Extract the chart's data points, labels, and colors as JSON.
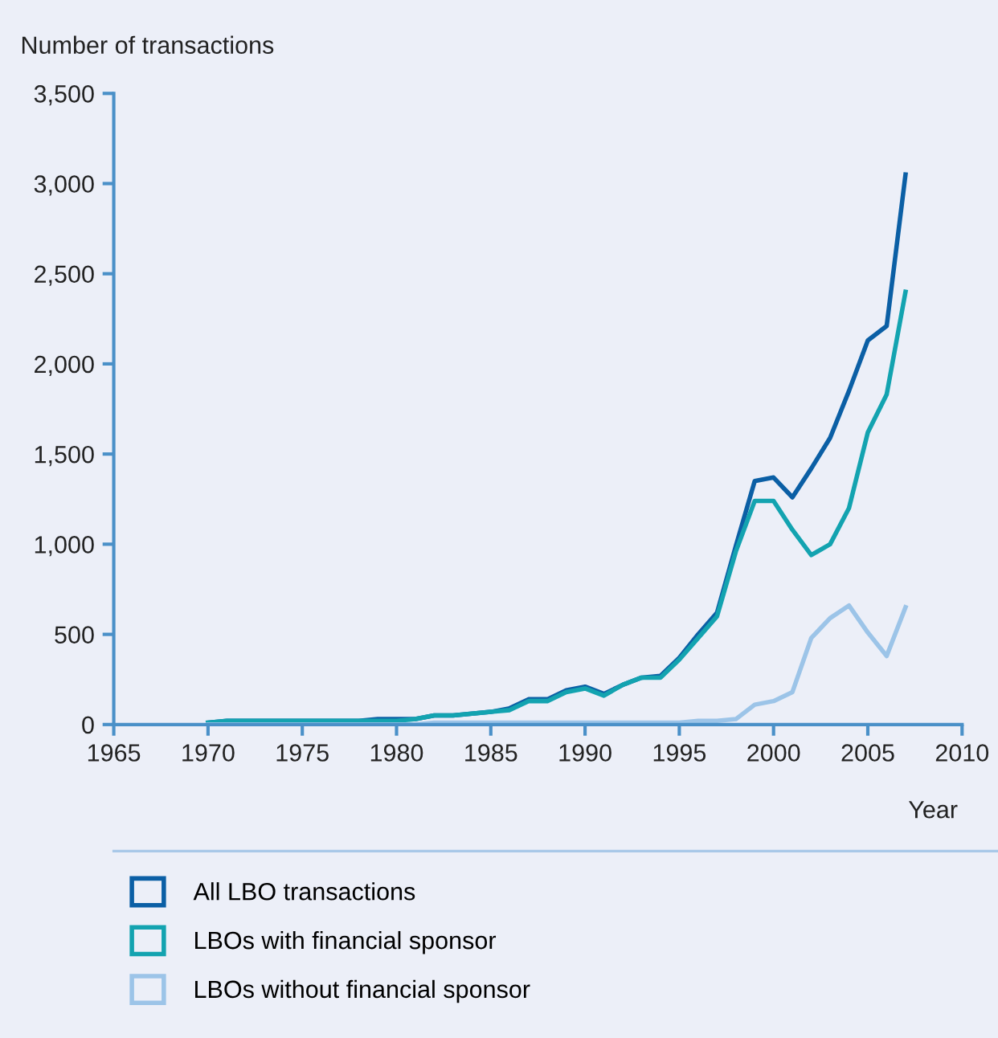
{
  "chart_data": {
    "type": "line",
    "ylabel": "Number of transactions",
    "xlabel": "Year",
    "x": [
      1970,
      1971,
      1972,
      1973,
      1974,
      1975,
      1976,
      1977,
      1978,
      1979,
      1980,
      1981,
      1982,
      1983,
      1984,
      1985,
      1986,
      1987,
      1988,
      1989,
      1990,
      1991,
      1992,
      1993,
      1994,
      1995,
      1996,
      1997,
      1998,
      1999,
      2000,
      2001,
      2002,
      2003,
      2004,
      2005,
      2006,
      2007
    ],
    "series": [
      {
        "name": "All LBO transactions",
        "color": "#0b5fa5",
        "values": [
          10,
          20,
          20,
          20,
          20,
          20,
          20,
          20,
          20,
          30,
          30,
          30,
          50,
          50,
          60,
          70,
          90,
          140,
          140,
          190,
          210,
          170,
          220,
          260,
          270,
          370,
          500,
          620,
          990,
          1350,
          1370,
          1260,
          1420,
          1590,
          1850,
          2130,
          2210,
          3050
        ]
      },
      {
        "name": "LBOs with financial sponsor",
        "color": "#13a3b0",
        "values": [
          10,
          20,
          20,
          20,
          20,
          20,
          20,
          20,
          20,
          20,
          20,
          30,
          50,
          50,
          60,
          70,
          80,
          130,
          130,
          180,
          200,
          160,
          220,
          260,
          260,
          360,
          480,
          600,
          960,
          1240,
          1240,
          1080,
          940,
          1000,
          1200,
          1620,
          1830,
          2400
        ]
      },
      {
        "name": "LBOs without financial sponsor",
        "color": "#9cc4e8",
        "values": [
          0,
          0,
          0,
          0,
          0,
          0,
          0,
          0,
          0,
          0,
          0,
          0,
          10,
          10,
          10,
          10,
          10,
          10,
          10,
          10,
          10,
          10,
          10,
          10,
          10,
          10,
          20,
          20,
          30,
          110,
          130,
          180,
          480,
          590,
          660,
          510,
          380,
          650
        ]
      }
    ],
    "xlim": [
      1965,
      2010
    ],
    "xticks": [
      1965,
      1970,
      1975,
      1980,
      1985,
      1990,
      1995,
      2000,
      2005,
      2010
    ],
    "ylim": [
      0,
      3500
    ],
    "yticks": [
      0,
      {
        "value": 500,
        "label": "500"
      },
      {
        "value": 1000,
        "label": "1,000"
      },
      {
        "value": 1500,
        "label": "1,500"
      },
      {
        "value": 2000,
        "label": "2,000"
      },
      {
        "value": 2500,
        "label": "2,500"
      },
      {
        "value": 3000,
        "label": "3,000"
      },
      {
        "value": 3500,
        "label": "3,500"
      }
    ],
    "grid": false,
    "legend": "bottom",
    "marker": "none",
    "line_style": "solid"
  }
}
